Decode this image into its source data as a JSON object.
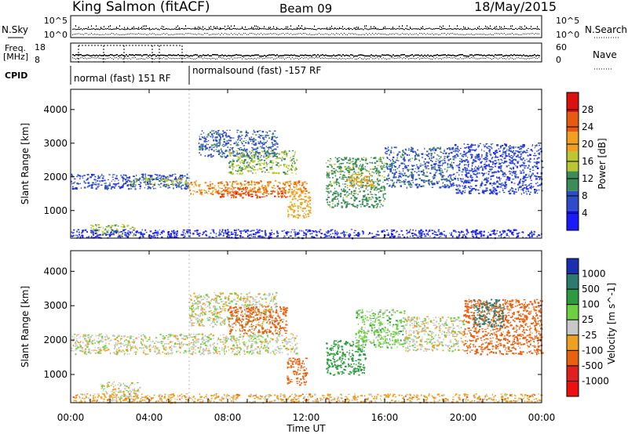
{
  "header": {
    "station": "King Salmon (fitACF)",
    "beam": "Beam 09",
    "date": "18/May/2015"
  },
  "strip": {
    "nsky_label": "N.Sky",
    "nsky_ticks": [
      "10^5",
      "10^0"
    ],
    "nsearch_label": "N.Search",
    "nsearch_ticks": [
      "10^5",
      "10^0"
    ],
    "freq_label": "Freq.",
    "freq_unit": "[MHz]",
    "freq_ticks": [
      "18",
      "8"
    ],
    "nave_label": "Nave",
    "nave_ticks": [
      "60",
      "0"
    ],
    "cpid_label": "CPID",
    "cpid_segments": [
      {
        "label": "normal (fast) 151 RF",
        "start_hour": 0,
        "end_hour": 6
      },
      {
        "label": "normalsound (fast) -157 RF",
        "start_hour": 6,
        "end_hour": 24
      }
    ]
  },
  "chart_data": [
    {
      "type": "heatmap",
      "title": "",
      "xlabel": "",
      "ylabel": "Slant Range [km]",
      "x_range_hours": [
        0,
        24
      ],
      "ylim": [
        180,
        4600
      ],
      "y_ticks": [
        1000,
        2000,
        3000,
        4000
      ],
      "colorbar_label": "Power [dB]",
      "colorbar_ticks": [
        "4",
        "8",
        "12",
        "16",
        "20",
        "24",
        "28"
      ],
      "colorbar_range": [
        0,
        32
      ],
      "colorbar_colors": [
        "#1a1aff",
        "#2f4cc8",
        "#3c8c5a",
        "#b9c832",
        "#f0a020",
        "#e85a10",
        "#dd1010"
      ],
      "scatter_regions": [
        {
          "t0": 0.0,
          "t1": 6.0,
          "r0": 1650,
          "r1": 2100,
          "value": 6
        },
        {
          "t0": 3.0,
          "t1": 6.0,
          "r0": 1750,
          "r1": 2000,
          "value": 14
        },
        {
          "t0": 6.0,
          "t1": 12.0,
          "r0": 1500,
          "r1": 1900,
          "value": 22
        },
        {
          "t0": 7.5,
          "t1": 11.0,
          "r0": 1400,
          "r1": 1700,
          "value": 26
        },
        {
          "t0": 6.5,
          "t1": 10.5,
          "r0": 2600,
          "r1": 3400,
          "value": 8
        },
        {
          "t0": 8.0,
          "t1": 11.5,
          "r0": 2100,
          "r1": 2800,
          "value": 14
        },
        {
          "t0": 11.0,
          "t1": 12.2,
          "r0": 800,
          "r1": 1600,
          "value": 20
        },
        {
          "t0": 1.0,
          "t1": 3.2,
          "r0": 280,
          "r1": 600,
          "value": 14
        },
        {
          "t0": 13.0,
          "t1": 16.0,
          "r0": 1100,
          "r1": 2600,
          "value": 12
        },
        {
          "t0": 14.0,
          "t1": 15.5,
          "r0": 1700,
          "r1": 2100,
          "value": 20
        },
        {
          "t0": 16.0,
          "t1": 19.5,
          "r0": 1700,
          "r1": 2900,
          "value": 8
        },
        {
          "t0": 19.5,
          "t1": 24.0,
          "r0": 1500,
          "r1": 3000,
          "value": 6
        },
        {
          "t0": 0.0,
          "t1": 24.0,
          "r0": 200,
          "r1": 450,
          "value": 4
        }
      ]
    },
    {
      "type": "heatmap",
      "title": "",
      "xlabel": "Time UT",
      "ylabel": "Slant Range [km]",
      "x_range_hours": [
        0,
        24
      ],
      "x_ticks": [
        "00:00",
        "04:00",
        "08:00",
        "12:00",
        "16:00",
        "20:00",
        "00:00"
      ],
      "ylim": [
        180,
        4600
      ],
      "y_ticks": [
        1000,
        2000,
        3000,
        4000
      ],
      "colorbar_label": "Velocity [m s^-1]",
      "colorbar_ticks": [
        "1000",
        "500",
        "100",
        "25",
        "-25",
        "-100",
        "-500",
        "-1000"
      ],
      "colorbar_colors": [
        "#1a2fb0",
        "#2f7a70",
        "#2e9a40",
        "#6cd040",
        "#c8c8c8",
        "#f0a020",
        "#e86010",
        "#e02020",
        "#ee1010"
      ],
      "scatter_regions": [
        {
          "t0": 0.0,
          "t1": 11.5,
          "r0": 1600,
          "r1": 2200,
          "value": 0
        },
        {
          "t0": 6.0,
          "t1": 10.5,
          "r0": 2400,
          "r1": 3400,
          "value": 0
        },
        {
          "t0": 8.0,
          "t1": 11.0,
          "r0": 2200,
          "r1": 3000,
          "value": -400
        },
        {
          "t0": 11.0,
          "t1": 12.0,
          "r0": 700,
          "r1": 1500,
          "value": -300
        },
        {
          "t0": 1.5,
          "t1": 3.5,
          "r0": 250,
          "r1": 800,
          "value": 0
        },
        {
          "t0": 13.0,
          "t1": 15.0,
          "r0": 1000,
          "r1": 2000,
          "value": 150
        },
        {
          "t0": 14.5,
          "t1": 17.0,
          "r0": 1800,
          "r1": 2900,
          "value": 60
        },
        {
          "t0": 17.0,
          "t1": 20.0,
          "r0": 1700,
          "r1": 2700,
          "value": 0
        },
        {
          "t0": 20.0,
          "t1": 24.0,
          "r0": 1600,
          "r1": 3200,
          "value": -200
        },
        {
          "t0": 20.5,
          "t1": 22.0,
          "r0": 2400,
          "r1": 3200,
          "value": 700
        },
        {
          "t0": 0.0,
          "t1": 24.0,
          "r0": 200,
          "r1": 450,
          "value": -60
        }
      ]
    }
  ]
}
